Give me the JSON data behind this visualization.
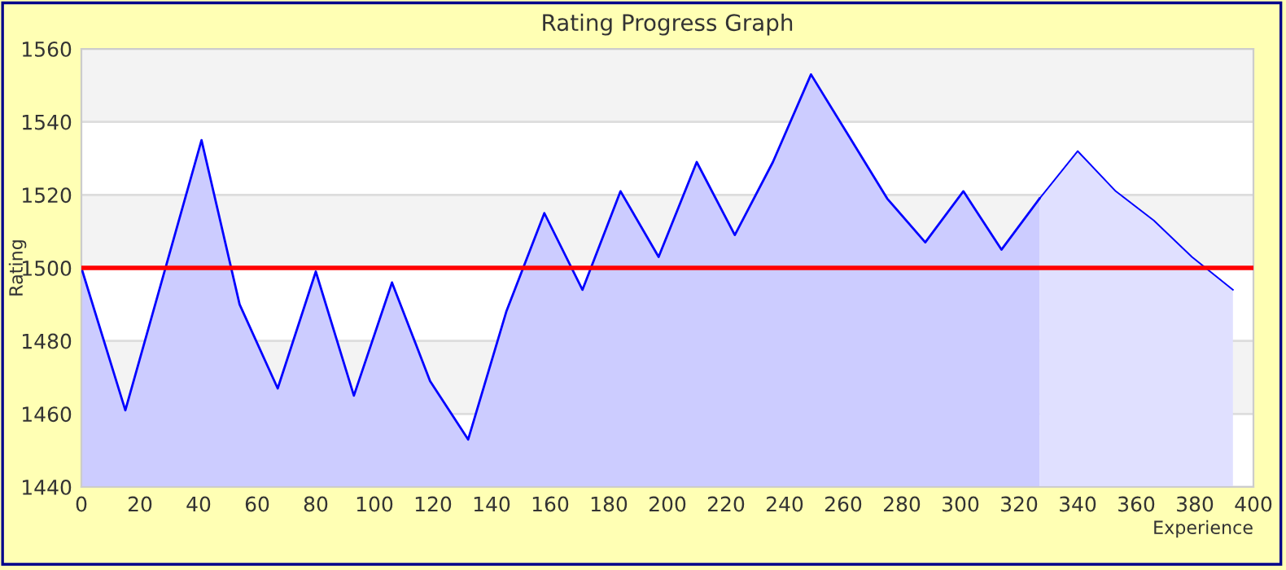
{
  "chart_data": {
    "type": "area",
    "title": "Rating Progress Graph",
    "xlabel": "Experience",
    "ylabel": "Rating",
    "xlim": [
      0,
      400
    ],
    "xticks": [
      0,
      20,
      40,
      60,
      80,
      100,
      120,
      140,
      160,
      180,
      200,
      220,
      240,
      260,
      280,
      300,
      320,
      340,
      360,
      380,
      400
    ],
    "ylim": [
      1440,
      1560
    ],
    "yticks": [
      1440,
      1460,
      1480,
      1500,
      1520,
      1540,
      1560
    ],
    "grid": "y",
    "legend": false,
    "ref_lines": [
      {
        "axis": "y",
        "value": 1500,
        "color": "#ff0000"
      }
    ],
    "series": [
      {
        "color": "#ccccff",
        "x": [
          0,
          15,
          41,
          54,
          67,
          80,
          93,
          106,
          119,
          132,
          145,
          158,
          171,
          184,
          197,
          210,
          223,
          236,
          249,
          262,
          275,
          288,
          301,
          314,
          327
        ],
        "values": [
          1500,
          1461,
          1535,
          1490,
          1467,
          1499,
          1465,
          1496,
          1469,
          1453,
          1488,
          1515,
          1494,
          1521,
          1503,
          1529,
          1509,
          1529,
          1553,
          1536,
          1519,
          1507,
          1521,
          1505,
          1519
        ]
      },
      {
        "color": "#e0e0ff",
        "x": [
          327,
          340,
          353,
          366,
          379,
          393
        ],
        "values": [
          1519,
          1532,
          1521,
          1513,
          1503,
          1494
        ]
      }
    ]
  }
}
